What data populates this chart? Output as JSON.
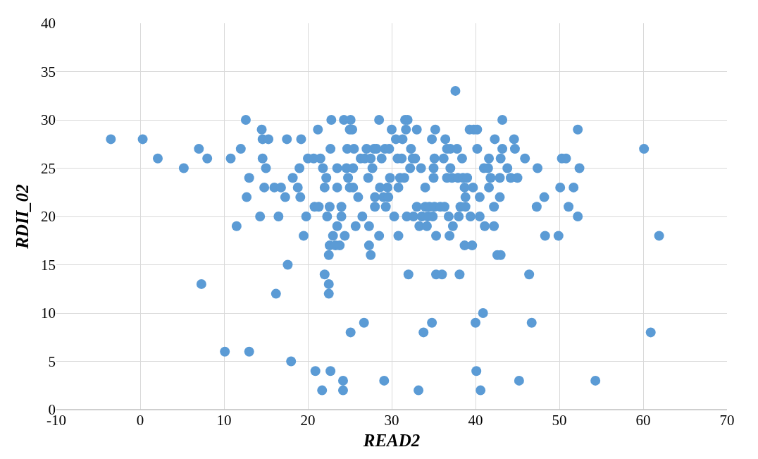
{
  "chart_data": {
    "type": "scatter",
    "xlabel": "READ2",
    "ylabel": "RDII_02",
    "xlim": [
      -10,
      70
    ],
    "xticks": [
      -10,
      0,
      10,
      20,
      30,
      40,
      50,
      60,
      70
    ],
    "ylim": [
      0,
      40
    ],
    "yticks": [
      0,
      5,
      10,
      15,
      20,
      25,
      30,
      35,
      40
    ],
    "grid": true,
    "legend": false,
    "marker": "circle",
    "series": [
      {
        "color": "#5b9bd5",
        "x": [
          -3.5,
          0.3,
          2.1,
          5.2,
          7,
          7.3,
          8,
          10.1,
          10.8,
          11.5,
          12,
          12.6,
          12.7,
          13,
          13,
          14.3,
          14.5,
          14.6,
          14.6,
          14.8,
          15,
          15.3,
          16,
          16.2,
          16.5,
          16.8,
          17.3,
          17.5,
          17.6,
          18,
          18.2,
          18.8,
          19,
          19.1,
          19.2,
          19.5,
          19.8,
          20,
          20.7,
          20.8,
          20.9,
          21.2,
          21.3,
          21.5,
          21.8,
          21.7,
          22,
          22,
          22.2,
          22.3,
          22.5,
          22.5,
          22.5,
          22.6,
          22.6,
          22.7,
          22.7,
          22.8,
          23,
          23.3,
          23.5,
          23.5,
          23.5,
          23.8,
          24,
          24,
          24.2,
          24.2,
          24.3,
          24.4,
          24.6,
          24.7,
          24.8,
          25,
          25,
          25.1,
          25.3,
          25.4,
          25.4,
          25.1,
          25.5,
          25.7,
          26,
          26.3,
          26.5,
          26.7,
          26.8,
          27,
          27.2,
          27.3,
          27.3,
          27.5,
          27.5,
          27.7,
          27.9,
          28,
          28,
          28.2,
          28.5,
          28.5,
          28.6,
          28.8,
          29,
          29.1,
          29.2,
          29.3,
          29.5,
          29.6,
          29.7,
          29.8,
          30,
          30.3,
          30.5,
          30.7,
          30.8,
          30.8,
          31,
          31.2,
          31.3,
          31.5,
          31.6,
          31.7,
          31.8,
          31.9,
          32,
          32.2,
          32.3,
          32.5,
          32.6,
          32.8,
          33,
          33,
          33.2,
          33.3,
          33.5,
          33.6,
          33.8,
          34,
          34,
          34.2,
          34.3,
          34.5,
          34.8,
          34.8,
          34.9,
          35,
          35,
          35.1,
          35.1,
          35.2,
          35.3,
          35.3,
          35.8,
          36,
          36.2,
          36.3,
          36.4,
          36.6,
          36.6,
          36.8,
          36.9,
          37,
          37,
          37.2,
          37.3,
          37.6,
          37.8,
          37.9,
          38,
          38.1,
          38.2,
          38.4,
          38.5,
          38.7,
          38.7,
          38.8,
          38.8,
          39,
          39.3,
          39.4,
          39.6,
          39.7,
          39.8,
          40,
          40.1,
          40.2,
          40.2,
          40.5,
          40.5,
          40.6,
          40.9,
          41,
          41.1,
          41.5,
          41.6,
          41.6,
          41.8,
          42.2,
          42.2,
          42.3,
          42.6,
          42.9,
          42.9,
          43,
          43,
          43.2,
          43.2,
          43.8,
          44.2,
          44.6,
          44.7,
          45,
          45.2,
          45.9,
          46.4,
          46.7,
          47.3,
          47.4,
          48.2,
          48.3,
          49.9,
          50.1,
          50.3,
          50.8,
          51.1,
          51.7,
          52.2,
          52.2,
          52.4,
          54.3,
          60.1,
          60.9,
          61.9
        ],
        "values": [
          28,
          28,
          26,
          25,
          27,
          13,
          26,
          6,
          26,
          19,
          27,
          30,
          22,
          24,
          6,
          20,
          29,
          28,
          26,
          23,
          25,
          28,
          23,
          12,
          20,
          23,
          22,
          28,
          15,
          5,
          24,
          23,
          25,
          22,
          28,
          18,
          20,
          26,
          26,
          21,
          4,
          29,
          21,
          26,
          25,
          2,
          14,
          23,
          24,
          20,
          16,
          13,
          12,
          17,
          21,
          4,
          27,
          30,
          18,
          17,
          19,
          25,
          23,
          17,
          21,
          20,
          3,
          2,
          30,
          18,
          25,
          27,
          24,
          23,
          29,
          30,
          29,
          25,
          23,
          8,
          27,
          19,
          22,
          26,
          20,
          9,
          26,
          27,
          24,
          19,
          17,
          16,
          26,
          25,
          27,
          21,
          22,
          27,
          30,
          18,
          23,
          26,
          22,
          3,
          27,
          21,
          23,
          22,
          27,
          24,
          29,
          20,
          28,
          26,
          18,
          23,
          24,
          26,
          28,
          24,
          30,
          29,
          20,
          30,
          14,
          25,
          27,
          26,
          20,
          26,
          29,
          21,
          2,
          19,
          25,
          20,
          8,
          21,
          23,
          19,
          20,
          21,
          28,
          9,
          20,
          24,
          25,
          26,
          21,
          29,
          14,
          18,
          21,
          14,
          26,
          21,
          28,
          27,
          24,
          20,
          18,
          25,
          27,
          24,
          19,
          33,
          27,
          24,
          20,
          14,
          21,
          26,
          24,
          23,
          17,
          22,
          21,
          24,
          29,
          20,
          17,
          23,
          29,
          9,
          4,
          27,
          29,
          20,
          22,
          2,
          10,
          25,
          19,
          25,
          23,
          26,
          24,
          19,
          21,
          28,
          16,
          24,
          22,
          16,
          26,
          27,
          30,
          25,
          24,
          28,
          27,
          24,
          3,
          26,
          14,
          9,
          21,
          25,
          22,
          18,
          18,
          23,
          26,
          26,
          21,
          23,
          20,
          29,
          25,
          3,
          27,
          8,
          18
        ]
      }
    ]
  }
}
